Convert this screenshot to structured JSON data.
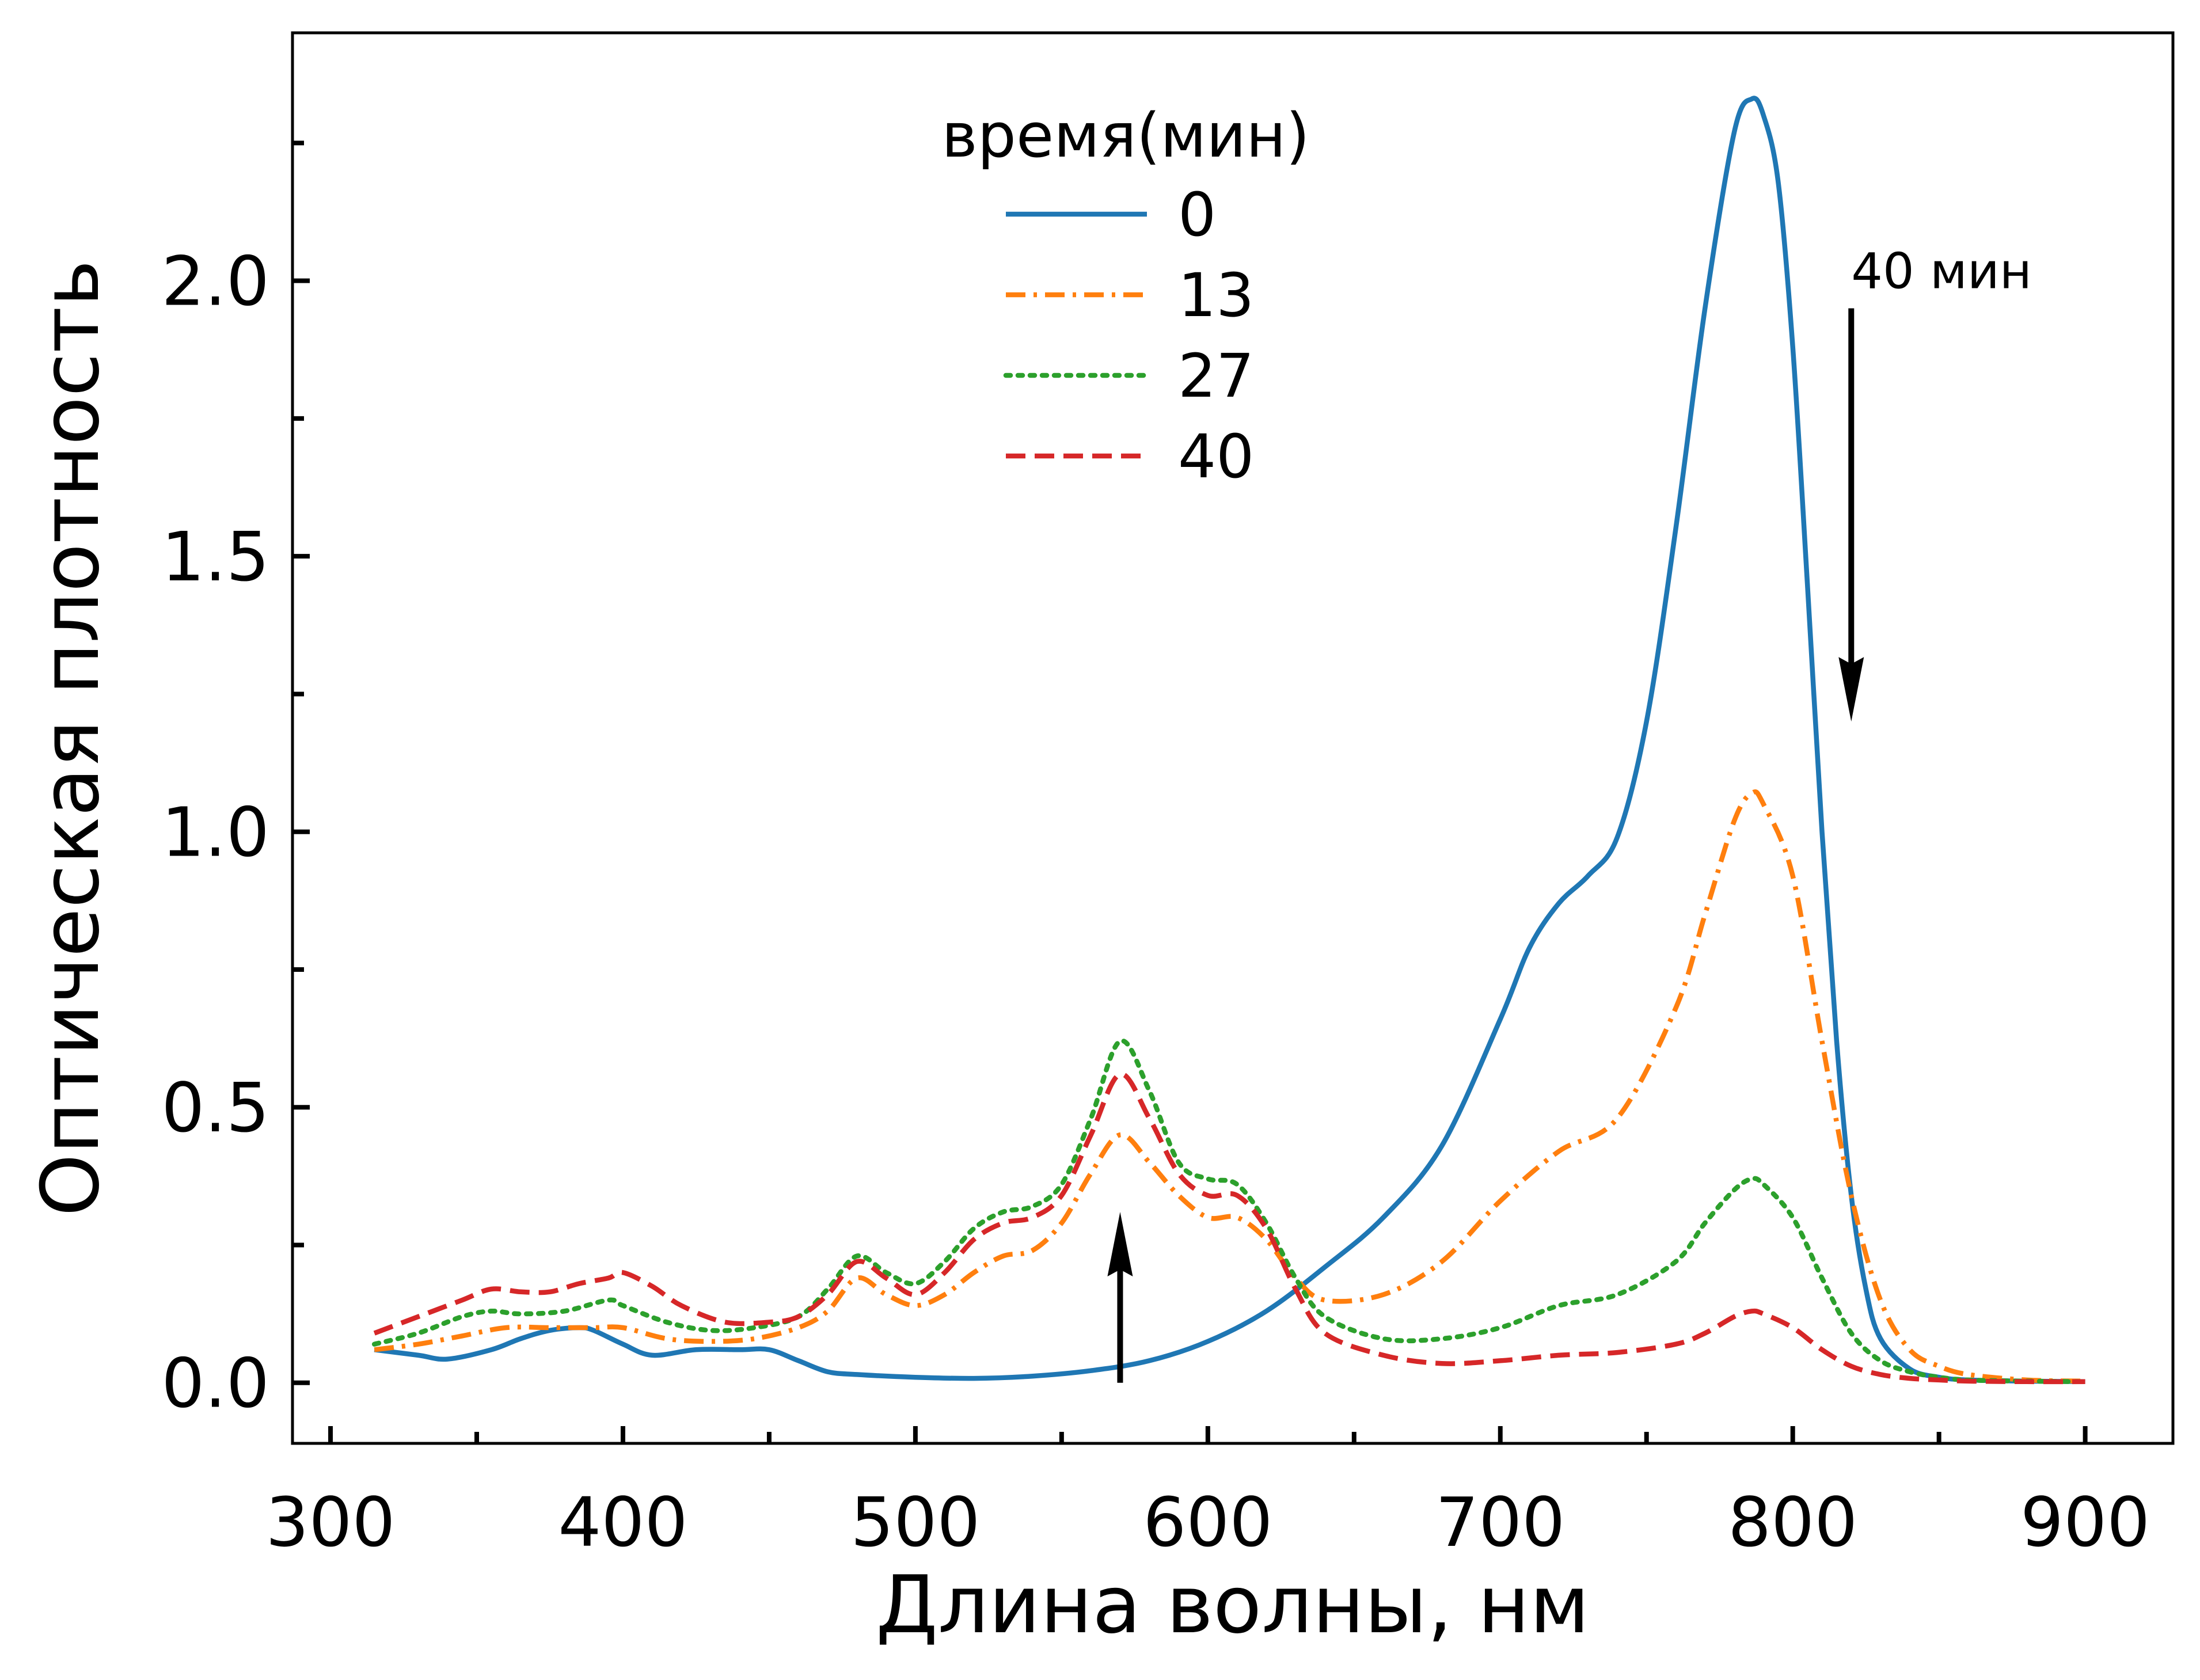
{
  "chart_data": {
    "type": "line",
    "xlabel": "Длина волны, нм",
    "ylabel": "Оптическая плотность",
    "xlim": [
      287,
      930
    ],
    "ylim": [
      -0.11,
      2.45
    ],
    "xticks": [
      300,
      400,
      500,
      600,
      700,
      800,
      900
    ],
    "xtick_labels": [
      "300",
      "400",
      "500",
      "600",
      "700",
      "800",
      "900"
    ],
    "yticks": [
      0.0,
      0.5,
      1.0,
      1.5,
      2.0
    ],
    "ytick_labels": [
      "0.0",
      "0.5",
      "1.0",
      "1.5",
      "2.0"
    ],
    "grid": false,
    "legend": {
      "title": "время(мин)",
      "placement": "upper-center"
    },
    "series": [
      {
        "name": "0",
        "color": "#1f77b4",
        "dash": "solid",
        "x": [
          315,
          330,
          340,
          355,
          365,
          375,
          385,
          390,
          400,
          410,
          425,
          440,
          450,
          460,
          470,
          480,
          500,
          520,
          540,
          560,
          580,
          600,
          620,
          640,
          660,
          680,
          700,
          710,
          720,
          730,
          740,
          750,
          760,
          770,
          780,
          786,
          790,
          795,
          800,
          805,
          810,
          815,
          820,
          825,
          830,
          840,
          850,
          860,
          880,
          900
        ],
        "y": [
          0.06,
          0.05,
          0.043,
          0.06,
          0.08,
          0.095,
          0.1,
          0.095,
          0.07,
          0.05,
          0.06,
          0.06,
          0.06,
          0.04,
          0.02,
          0.015,
          0.01,
          0.008,
          0.012,
          0.022,
          0.04,
          0.075,
          0.13,
          0.21,
          0.3,
          0.43,
          0.66,
          0.79,
          0.87,
          0.92,
          0.99,
          1.2,
          1.55,
          1.95,
          2.27,
          2.33,
          2.3,
          2.18,
          1.88,
          1.45,
          1.0,
          0.62,
          0.34,
          0.17,
          0.08,
          0.025,
          0.01,
          0.005,
          0.003,
          0.002
        ]
      },
      {
        "name": "13",
        "color": "#ff7f0e",
        "dash": "dashdot",
        "x": [
          315,
          330,
          345,
          360,
          375,
          390,
          400,
          415,
          430,
          445,
          460,
          470,
          480,
          490,
          500,
          510,
          520,
          530,
          540,
          550,
          560,
          570,
          580,
          590,
          600,
          610,
          620,
          630,
          640,
          660,
          680,
          700,
          720,
          740,
          760,
          770,
          780,
          786,
          790,
          800,
          810,
          820,
          830,
          840,
          850,
          860,
          880,
          900
        ],
        "y": [
          0.06,
          0.07,
          0.085,
          0.1,
          0.1,
          0.1,
          0.1,
          0.08,
          0.075,
          0.08,
          0.1,
          0.13,
          0.19,
          0.16,
          0.14,
          0.16,
          0.2,
          0.23,
          0.24,
          0.29,
          0.38,
          0.45,
          0.4,
          0.34,
          0.3,
          0.3,
          0.26,
          0.19,
          0.15,
          0.16,
          0.22,
          0.33,
          0.42,
          0.48,
          0.68,
          0.85,
          1.02,
          1.07,
          1.05,
          0.92,
          0.62,
          0.34,
          0.15,
          0.06,
          0.03,
          0.015,
          0.005,
          0.003
        ]
      },
      {
        "name": "27",
        "color": "#2ca02c",
        "dash": "dotted",
        "x": [
          315,
          330,
          345,
          355,
          365,
          380,
          395,
          400,
          415,
          430,
          445,
          460,
          470,
          480,
          490,
          500,
          510,
          520,
          530,
          540,
          550,
          560,
          570,
          580,
          590,
          600,
          610,
          620,
          630,
          640,
          660,
          680,
          700,
          720,
          740,
          760,
          770,
          780,
          786,
          790,
          800,
          810,
          820,
          830,
          840,
          850,
          860,
          880,
          900
        ],
        "y": [
          0.07,
          0.09,
          0.12,
          0.13,
          0.125,
          0.13,
          0.15,
          0.14,
          0.11,
          0.095,
          0.1,
          0.12,
          0.17,
          0.23,
          0.2,
          0.18,
          0.22,
          0.28,
          0.31,
          0.32,
          0.36,
          0.48,
          0.62,
          0.53,
          0.4,
          0.37,
          0.36,
          0.29,
          0.19,
          0.12,
          0.08,
          0.08,
          0.1,
          0.14,
          0.16,
          0.22,
          0.29,
          0.35,
          0.37,
          0.36,
          0.3,
          0.19,
          0.09,
          0.04,
          0.02,
          0.01,
          0.005,
          0.003,
          0.002
        ]
      },
      {
        "name": "40",
        "color": "#d62728",
        "dash": "dashed",
        "x": [
          315,
          330,
          345,
          355,
          365,
          375,
          385,
          395,
          400,
          410,
          420,
          435,
          450,
          460,
          470,
          480,
          490,
          500,
          510,
          520,
          530,
          540,
          550,
          560,
          570,
          580,
          590,
          600,
          610,
          620,
          630,
          640,
          660,
          680,
          700,
          720,
          740,
          760,
          770,
          780,
          786,
          790,
          800,
          810,
          820,
          830,
          840,
          850,
          860,
          880,
          900
        ],
        "y": [
          0.09,
          0.12,
          0.15,
          0.17,
          0.165,
          0.165,
          0.18,
          0.19,
          0.2,
          0.175,
          0.14,
          0.11,
          0.11,
          0.12,
          0.16,
          0.22,
          0.19,
          0.16,
          0.2,
          0.26,
          0.29,
          0.3,
          0.34,
          0.45,
          0.56,
          0.48,
          0.38,
          0.34,
          0.34,
          0.28,
          0.17,
          0.09,
          0.05,
          0.035,
          0.04,
          0.05,
          0.055,
          0.07,
          0.09,
          0.12,
          0.13,
          0.125,
          0.1,
          0.06,
          0.03,
          0.015,
          0.008,
          0.005,
          0.003,
          0.002,
          0.002
        ]
      }
    ],
    "annotations": [
      {
        "text": "40 мин",
        "kind": "arrow-down",
        "x": 820,
        "y_from": 1.95,
        "y_to": 1.2
      },
      {
        "text": "",
        "kind": "arrow-up",
        "x": 570,
        "y_from": 0.0,
        "y_to": 0.31
      }
    ]
  }
}
